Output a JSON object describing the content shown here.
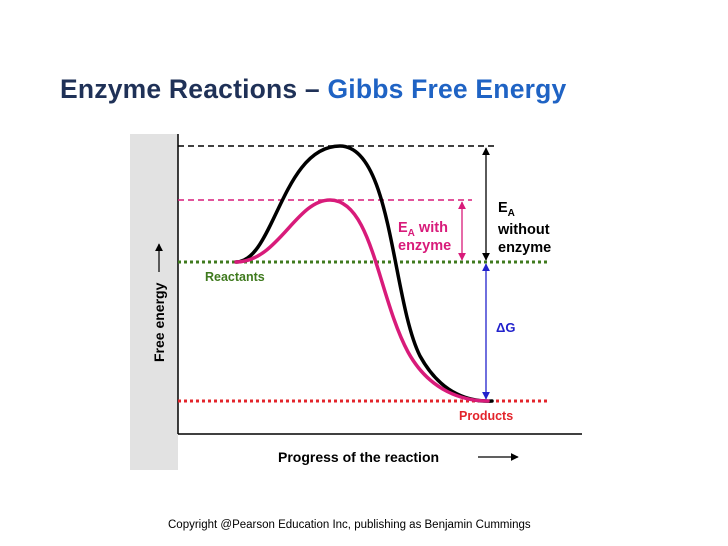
{
  "title": {
    "part1": "Enzyme Reactions – ",
    "part2": "Gibbs Free Energy",
    "colors": {
      "dark": "#1f3157",
      "blue": "#1f63c4"
    }
  },
  "diagram": {
    "y_axis_label": "Free energy",
    "x_axis_label": "Progress of the reaction",
    "reactants_label": "Reactants",
    "products_label": "Products",
    "ea_with_enzyme": {
      "main": "E",
      "sub": "A",
      "suffix": " with",
      "line2": "enzyme"
    },
    "ea_without_enzyme": {
      "main": "E",
      "sub": "A",
      "line2": "without",
      "line3": "enzyme"
    },
    "delta_g_label": "ΔG",
    "colors": {
      "reactants_line": "#3f7a1e",
      "products_line": "#e3242b",
      "enzyme_curve": "#d81b7a",
      "uncatalyzed_curve": "#000000",
      "delta_g_arrow": "#2222cc",
      "ea_enzyme_arrow": "#d81b7a"
    }
  },
  "footer": {
    "copyright": "Copyright @Pearson Education Inc, publishing as Benjamin Cummings"
  }
}
